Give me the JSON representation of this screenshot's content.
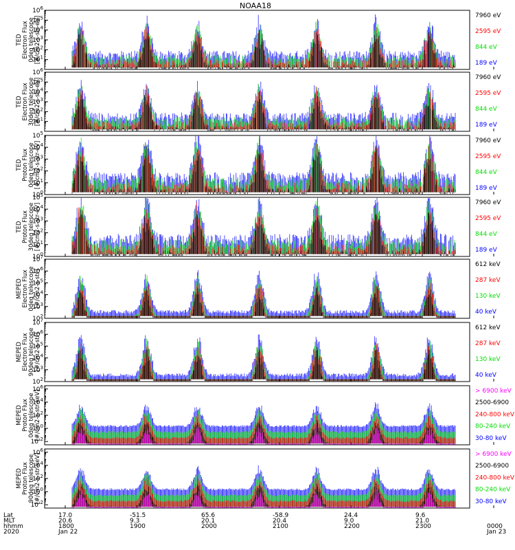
{
  "title": "NOAA18",
  "colors": {
    "black": "#000000",
    "red": "#ff0000",
    "green": "#00dd00",
    "blue": "#0000ff",
    "magenta": "#ff00ff"
  },
  "chart_data": [
    {
      "type": "line",
      "panel": "TED Electron Flux 0deg telescope",
      "ylabel": [
        "TED",
        "Electron Flux",
        "0deg telescope",
        "[#/cm2-s-str-eV]"
      ],
      "yexp": [
        1,
        2,
        3,
        4,
        5,
        6
      ],
      "ymin": 0,
      "ymax": 6,
      "series": [
        {
          "name": "7960 eV",
          "color": "black"
        },
        {
          "name": "2595 eV",
          "color": "red"
        },
        {
          "name": "844 eV",
          "color": "green"
        },
        {
          "name": "189 eV",
          "color": "blue"
        }
      ]
    },
    {
      "type": "line",
      "panel": "TED Electron Flux 30deg telescope",
      "ylabel": [
        "TED",
        "Electron Flux",
        "30deg telescope",
        "[#/cm2-s-str-eV]"
      ],
      "yexp": [
        1,
        2,
        3,
        4,
        5,
        6
      ],
      "ymin": 0,
      "ymax": 6,
      "series": [
        {
          "name": "7960 eV",
          "color": "black"
        },
        {
          "name": "2595 eV",
          "color": "red"
        },
        {
          "name": "844 eV",
          "color": "green"
        },
        {
          "name": "189 eV",
          "color": "blue"
        }
      ]
    },
    {
      "type": "line",
      "panel": "TED Proton Flux 0deg telescope",
      "ylabel": [
        "TED",
        "Proton Flux",
        "0deg telescope",
        "[#/cm2-s-str-eV]"
      ],
      "yexp": [
        0,
        1,
        2,
        3,
        4,
        5
      ],
      "ymin": 0,
      "ymax": 5,
      "series": [
        {
          "name": "7960 eV",
          "color": "black"
        },
        {
          "name": "2595 eV",
          "color": "red"
        },
        {
          "name": "844 eV",
          "color": "green"
        },
        {
          "name": "189 eV",
          "color": "blue"
        }
      ]
    },
    {
      "type": "line",
      "panel": "TED Proton Flux 30deg telescope",
      "ylabel": [
        "TED",
        "Proton Flux",
        "30deg telescope",
        "[#/cm2-s-str-eV]"
      ],
      "yexp": [
        0,
        1,
        2,
        3,
        4,
        5
      ],
      "ymin": 0,
      "ymax": 5,
      "series": [
        {
          "name": "7960 eV",
          "color": "black"
        },
        {
          "name": "2595 eV",
          "color": "red"
        },
        {
          "name": "844 eV",
          "color": "green"
        },
        {
          "name": "189 eV",
          "color": "blue"
        }
      ]
    },
    {
      "type": "line",
      "panel": "MEPED Electron Flux 0deg telescope",
      "ylabel": [
        "MEPED",
        "Electron Flux",
        "0deg telescope",
        "[#/cm2-s-str]"
      ],
      "yexp": [
        2,
        3,
        4,
        5,
        6,
        7
      ],
      "ymin": 2,
      "ymax": 7,
      "series": [
        {
          "name": "612 keV",
          "color": "black"
        },
        {
          "name": "287 keV",
          "color": "red"
        },
        {
          "name": "130 keV",
          "color": "green"
        },
        {
          "name": "40 keV",
          "color": "blue"
        }
      ]
    },
    {
      "type": "line",
      "panel": "MEPED Electron Flux 90deg telescope",
      "ylabel": [
        "MEPED",
        "Electron Flux",
        "90deg telescope",
        "[#/cm2-s-str]"
      ],
      "yexp": [
        2,
        3,
        4,
        5,
        6,
        7
      ],
      "ymin": 2,
      "ymax": 7,
      "series": [
        {
          "name": "612 keV",
          "color": "black"
        },
        {
          "name": "287 keV",
          "color": "red"
        },
        {
          "name": "130 keV",
          "color": "green"
        },
        {
          "name": "40 keV",
          "color": "blue"
        }
      ]
    },
    {
      "type": "line",
      "panel": "MEPED Proton Flux 0deg telescope",
      "ylabel": [
        "MEPED",
        "Proton Flux",
        "0deg telescope",
        "[#/cm2-s-str-keV]"
      ],
      "yexp": [
        -2,
        0,
        2,
        4,
        6
      ],
      "ymin": -2.5,
      "ymax": 6.5,
      "series": [
        {
          "name": "> 6900 keV",
          "color": "magenta"
        },
        {
          "name": "2500-6900",
          "color": "black"
        },
        {
          "name": "240-800 keV",
          "color": "red"
        },
        {
          "name": "80-240 keV",
          "color": "green"
        },
        {
          "name": "30-80 keV",
          "color": "blue"
        }
      ]
    },
    {
      "type": "line",
      "panel": "MEPED Proton Flux 90deg telescope",
      "ylabel": [
        "MEPED",
        "Proton Flux",
        "90deg telescope",
        "[#/cm2-s-str-keV]"
      ],
      "yexp": [
        -2,
        0,
        2,
        4,
        6
      ],
      "ymin": -2.5,
      "ymax": 6.5,
      "series": [
        {
          "name": "> 6900 keV",
          "color": "magenta"
        },
        {
          "name": "2500-6900",
          "color": "black"
        },
        {
          "name": "240-800 keV",
          "color": "red"
        },
        {
          "name": "80-240 keV",
          "color": "green"
        },
        {
          "name": "30-80 keV",
          "color": "blue"
        }
      ]
    }
  ],
  "x_axis": {
    "row_labels": [
      "Lat",
      "MLT",
      "hhmm",
      "2020"
    ],
    "ticks": [
      {
        "lat": "17.0",
        "mlt": "20.6",
        "hhmm": "1800",
        "date": "Jan 22"
      },
      {
        "lat": "-51.5",
        "mlt": "9.3",
        "hhmm": "1900",
        "date": ""
      },
      {
        "lat": "65.6",
        "mlt": "20.1",
        "hhmm": "2000",
        "date": ""
      },
      {
        "lat": "-58.9",
        "mlt": "20.4",
        "hhmm": "2100",
        "date": ""
      },
      {
        "lat": "24.4",
        "mlt": "9.0",
        "hhmm": "2200",
        "date": ""
      },
      {
        "lat": "9.6",
        "mlt": "21.0",
        "hhmm": "2300",
        "date": ""
      },
      {
        "lat": "",
        "mlt": "",
        "hhmm": "0000",
        "date": "Jan 23"
      }
    ]
  }
}
